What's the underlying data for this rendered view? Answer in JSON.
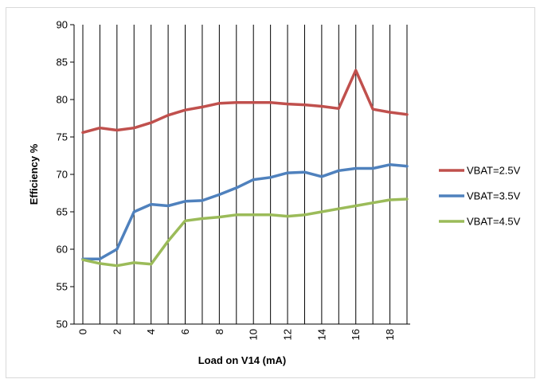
{
  "chart_data": {
    "type": "line",
    "title": "",
    "xlabel": "Load on V14 (mA)",
    "ylabel": "Efficiency %",
    "x": [
      0,
      1,
      2,
      3,
      4,
      5,
      6,
      7,
      8,
      9,
      10,
      11,
      12,
      13,
      14,
      15,
      16,
      17,
      18,
      19
    ],
    "x_tick_labels": [
      "0",
      "2",
      "4",
      "6",
      "8",
      "10",
      "12",
      "14",
      "16",
      "18"
    ],
    "y_tick_labels": [
      "50",
      "55",
      "60",
      "65",
      "70",
      "75",
      "80",
      "85",
      "90"
    ],
    "xlim": [
      0,
      19
    ],
    "ylim": [
      50,
      90
    ],
    "grid": "vertical lines at each x point",
    "legend_position": "right",
    "series": [
      {
        "name": "VBAT=2.5V",
        "color": "#c0504d",
        "values": [
          75.6,
          76.2,
          75.9,
          76.2,
          76.9,
          77.9,
          78.6,
          79.0,
          79.5,
          79.6,
          79.6,
          79.6,
          79.4,
          79.3,
          79.1,
          78.8,
          83.9,
          78.7,
          78.3,
          78.0
        ]
      },
      {
        "name": "VBAT=3.5V",
        "color": "#4f81bd",
        "values": [
          58.7,
          58.7,
          60.0,
          65.0,
          66.0,
          65.8,
          66.4,
          66.5,
          67.3,
          68.2,
          69.3,
          69.6,
          70.2,
          70.3,
          69.7,
          70.5,
          70.8,
          70.8,
          71.3,
          71.1
        ]
      },
      {
        "name": "VBAT=4.5V",
        "color": "#9bbb59",
        "values": [
          58.6,
          58.1,
          57.8,
          58.2,
          58.0,
          61.1,
          63.8,
          64.1,
          64.3,
          64.6,
          64.6,
          64.6,
          64.4,
          64.6,
          65.0,
          65.4,
          65.8,
          66.2,
          66.6,
          66.7
        ]
      }
    ]
  }
}
